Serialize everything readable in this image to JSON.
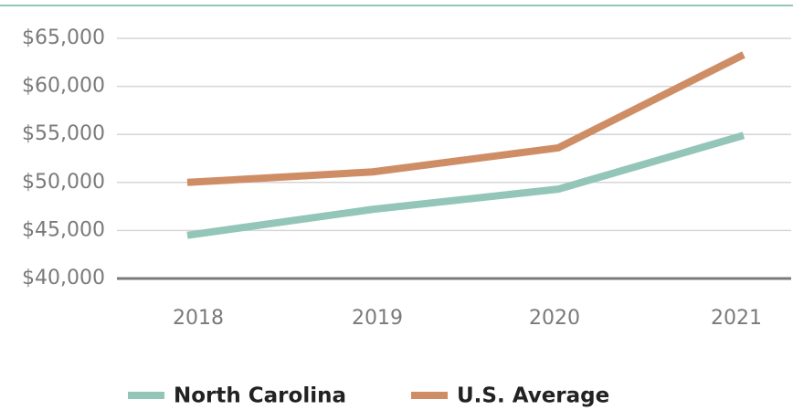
{
  "chart_data": {
    "type": "line",
    "categories": [
      "2018",
      "2019",
      "2020",
      "2021"
    ],
    "series": [
      {
        "name": "North Carolina",
        "color": "#93c5b8",
        "values": [
          44500,
          47200,
          49300,
          54900
        ]
      },
      {
        "name": "U.S. Average",
        "color": "#cf8d66",
        "values": [
          50000,
          51100,
          53600,
          63300
        ]
      }
    ],
    "ylim": [
      40000,
      65000
    ],
    "yticks": [
      {
        "value": 40000,
        "label": "$40,000"
      },
      {
        "value": 45000,
        "label": "$45,000"
      },
      {
        "value": 50000,
        "label": "$50,000"
      },
      {
        "value": 55000,
        "label": "$55,000"
      },
      {
        "value": 60000,
        "label": "$60,000"
      },
      {
        "value": 65000,
        "label": "$65,000"
      }
    ],
    "grid": true,
    "legend": "bottom"
  }
}
